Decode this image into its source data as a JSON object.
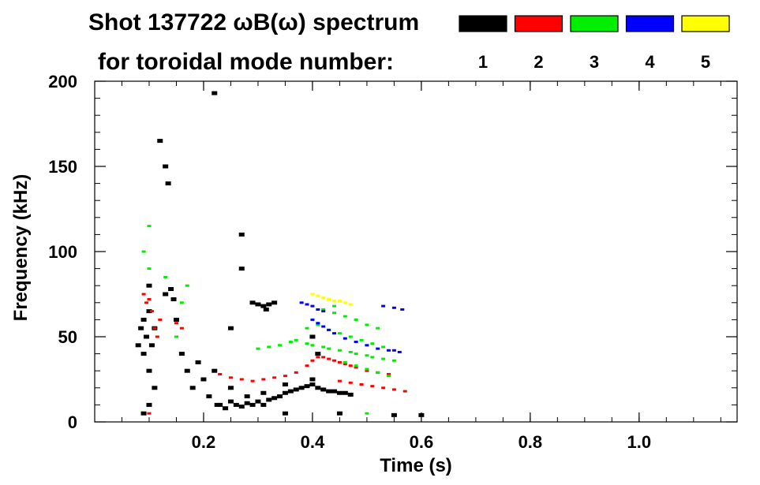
{
  "chart_data": {
    "type": "scatter",
    "title_line1": "Shot 137722 ωB(ω) spectrum",
    "title_line2": "for toroidal mode number:",
    "xlabel": "Time (s)",
    "ylabel": "Frequency (kHz)",
    "xlim": [
      0.0,
      1.18
    ],
    "ylim": [
      0,
      200
    ],
    "x_ticks": [
      0.2,
      0.4,
      0.6,
      0.8,
      1.0
    ],
    "x_tick_labels": [
      "0.2",
      "0.4",
      "0.6",
      "0.8",
      "1.0"
    ],
    "y_ticks": [
      0,
      50,
      100,
      150,
      200
    ],
    "y_tick_labels": [
      "0",
      "50",
      "100",
      "150",
      "200"
    ],
    "grid": false,
    "legend": {
      "placement": "top-right",
      "entries": [
        {
          "label": "1",
          "color": "#000000"
        },
        {
          "label": "2",
          "color": "#ff0000"
        },
        {
          "label": "3",
          "color": "#00ee00"
        },
        {
          "label": "4",
          "color": "#0000ff"
        },
        {
          "label": "5",
          "color": "#ffff00"
        }
      ]
    },
    "series": [
      {
        "mode": 1,
        "color": "#000000",
        "points": [
          [
            0.08,
            45
          ],
          [
            0.085,
            55
          ],
          [
            0.09,
            60
          ],
          [
            0.09,
            40
          ],
          [
            0.095,
            50
          ],
          [
            0.1,
            65
          ],
          [
            0.1,
            30
          ],
          [
            0.105,
            45
          ],
          [
            0.11,
            55
          ],
          [
            0.11,
            20
          ],
          [
            0.09,
            5
          ],
          [
            0.1,
            10
          ],
          [
            0.13,
            75
          ],
          [
            0.14,
            78
          ],
          [
            0.145,
            72
          ],
          [
            0.1,
            80
          ],
          [
            0.13,
            150
          ],
          [
            0.135,
            140
          ],
          [
            0.12,
            165
          ],
          [
            0.15,
            60
          ],
          [
            0.16,
            40
          ],
          [
            0.17,
            30
          ],
          [
            0.18,
            20
          ],
          [
            0.19,
            35
          ],
          [
            0.2,
            25
          ],
          [
            0.21,
            15
          ],
          [
            0.22,
            30
          ],
          [
            0.225,
            10
          ],
          [
            0.23,
            10
          ],
          [
            0.24,
            8
          ],
          [
            0.25,
            12
          ],
          [
            0.26,
            10
          ],
          [
            0.27,
            9
          ],
          [
            0.28,
            11
          ],
          [
            0.29,
            10
          ],
          [
            0.3,
            12
          ],
          [
            0.31,
            10
          ],
          [
            0.32,
            13
          ],
          [
            0.33,
            14
          ],
          [
            0.34,
            15
          ],
          [
            0.35,
            17
          ],
          [
            0.36,
            18
          ],
          [
            0.37,
            19
          ],
          [
            0.38,
            20
          ],
          [
            0.39,
            21
          ],
          [
            0.4,
            22
          ],
          [
            0.41,
            20
          ],
          [
            0.42,
            19
          ],
          [
            0.43,
            18
          ],
          [
            0.44,
            18
          ],
          [
            0.45,
            17
          ],
          [
            0.46,
            17
          ],
          [
            0.47,
            16
          ],
          [
            0.25,
            20
          ],
          [
            0.28,
            15
          ],
          [
            0.31,
            17
          ],
          [
            0.35,
            22
          ],
          [
            0.4,
            25
          ],
          [
            0.4,
            50
          ],
          [
            0.41,
            40
          ],
          [
            0.29,
            70
          ],
          [
            0.3,
            69
          ],
          [
            0.31,
            68
          ],
          [
            0.32,
            69
          ],
          [
            0.33,
            70
          ],
          [
            0.315,
            66
          ],
          [
            0.25,
            55
          ],
          [
            0.35,
            5
          ],
          [
            0.45,
            5
          ],
          [
            0.55,
            4
          ],
          [
            0.6,
            4
          ],
          [
            0.22,
            193
          ],
          [
            0.27,
            110
          ],
          [
            0.27,
            90
          ]
        ]
      },
      {
        "mode": 2,
        "color": "#ff0000",
        "points": [
          [
            0.09,
            75
          ],
          [
            0.095,
            70
          ],
          [
            0.1,
            72
          ],
          [
            0.105,
            65
          ],
          [
            0.11,
            55
          ],
          [
            0.115,
            50
          ],
          [
            0.12,
            60
          ],
          [
            0.15,
            58
          ],
          [
            0.16,
            55
          ],
          [
            0.1,
            5
          ],
          [
            0.23,
            28
          ],
          [
            0.25,
            26
          ],
          [
            0.27,
            25
          ],
          [
            0.29,
            24
          ],
          [
            0.31,
            25
          ],
          [
            0.33,
            26
          ],
          [
            0.35,
            27
          ],
          [
            0.37,
            29
          ],
          [
            0.39,
            33
          ],
          [
            0.4,
            36
          ],
          [
            0.41,
            38
          ],
          [
            0.42,
            38
          ],
          [
            0.43,
            37
          ],
          [
            0.44,
            36
          ],
          [
            0.45,
            35
          ],
          [
            0.46,
            34
          ],
          [
            0.47,
            33
          ],
          [
            0.48,
            32
          ],
          [
            0.5,
            30
          ],
          [
            0.52,
            29
          ],
          [
            0.54,
            28
          ],
          [
            0.45,
            24
          ],
          [
            0.47,
            23
          ],
          [
            0.49,
            22
          ],
          [
            0.51,
            21
          ],
          [
            0.53,
            20
          ],
          [
            0.55,
            19
          ],
          [
            0.57,
            18
          ]
        ]
      },
      {
        "mode": 3,
        "color": "#00ee00",
        "points": [
          [
            0.09,
            100
          ],
          [
            0.1,
            115
          ],
          [
            0.1,
            90
          ],
          [
            0.13,
            85
          ],
          [
            0.15,
            50
          ],
          [
            0.16,
            70
          ],
          [
            0.17,
            80
          ],
          [
            0.3,
            43
          ],
          [
            0.32,
            44
          ],
          [
            0.34,
            45
          ],
          [
            0.36,
            47
          ],
          [
            0.37,
            48
          ],
          [
            0.39,
            46
          ],
          [
            0.4,
            45
          ],
          [
            0.42,
            44
          ],
          [
            0.43,
            43
          ],
          [
            0.45,
            42
          ],
          [
            0.47,
            41
          ],
          [
            0.48,
            40
          ],
          [
            0.5,
            39
          ],
          [
            0.51,
            38
          ],
          [
            0.53,
            37
          ],
          [
            0.55,
            36
          ],
          [
            0.39,
            55
          ],
          [
            0.41,
            57
          ],
          [
            0.43,
            54
          ],
          [
            0.45,
            52
          ],
          [
            0.47,
            50
          ],
          [
            0.49,
            48
          ],
          [
            0.51,
            46
          ],
          [
            0.53,
            44
          ],
          [
            0.44,
            64
          ],
          [
            0.46,
            62
          ],
          [
            0.48,
            60
          ],
          [
            0.5,
            57
          ],
          [
            0.52,
            55
          ],
          [
            0.46,
            35
          ],
          [
            0.48,
            33
          ],
          [
            0.5,
            31
          ],
          [
            0.52,
            29
          ],
          [
            0.54,
            27
          ],
          [
            0.42,
            66
          ],
          [
            0.44,
            68
          ],
          [
            0.5,
            5
          ]
        ]
      },
      {
        "mode": 4,
        "color": "#0000ff",
        "points": [
          [
            0.38,
            70
          ],
          [
            0.39,
            69
          ],
          [
            0.4,
            68
          ],
          [
            0.41,
            66
          ],
          [
            0.42,
            65
          ],
          [
            0.4,
            60
          ],
          [
            0.41,
            58
          ],
          [
            0.42,
            56
          ],
          [
            0.43,
            54
          ],
          [
            0.44,
            52
          ],
          [
            0.46,
            49
          ],
          [
            0.48,
            47
          ],
          [
            0.5,
            45
          ],
          [
            0.52,
            43
          ],
          [
            0.54,
            42
          ],
          [
            0.55,
            42
          ],
          [
            0.56,
            41
          ],
          [
            0.53,
            68
          ],
          [
            0.55,
            67
          ],
          [
            0.565,
            66
          ]
        ]
      },
      {
        "mode": 5,
        "color": "#ffff00",
        "points": [
          [
            0.4,
            75
          ],
          [
            0.41,
            74
          ],
          [
            0.42,
            73
          ],
          [
            0.43,
            72
          ],
          [
            0.44,
            71
          ],
          [
            0.45,
            71
          ],
          [
            0.46,
            70
          ],
          [
            0.47,
            69
          ]
        ]
      }
    ]
  }
}
